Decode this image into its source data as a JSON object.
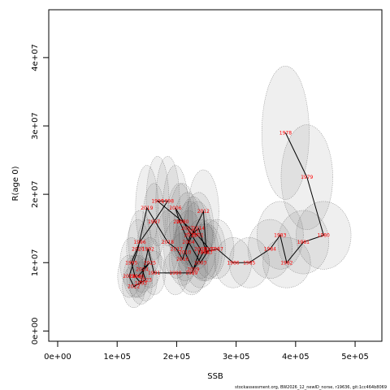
{
  "chart_data": {
    "type": "scatter",
    "xlabel": "SSB",
    "ylabel": "R(age 0)",
    "xlim": [
      -15000,
      545000
    ],
    "ylim": [
      -1500000,
      47000000
    ],
    "x_ticks": [
      0,
      100000,
      200000,
      300000,
      400000,
      500000
    ],
    "x_tick_labels": [
      "0e+00",
      "1e+05",
      "2e+05",
      "3e+05",
      "4e+05",
      "5e+05"
    ],
    "y_ticks": [
      0,
      10000000,
      20000000,
      30000000,
      40000000
    ],
    "y_tick_labels": [
      "0e+00",
      "1e+07",
      "2e+07",
      "3e+07",
      "4e+07"
    ],
    "footer_text": "stockassessment.org, BW2026_12_newID_norse, r19636, git:1cc464b8069",
    "connected_path": true,
    "ellipses_shown": true,
    "points": [
      {
        "label": "1978",
        "x": 383000,
        "y": 29000000
      },
      {
        "label": "1979",
        "x": 419000,
        "y": 22500000
      },
      {
        "label": "1980",
        "x": 447000,
        "y": 14000000
      },
      {
        "label": "1981",
        "x": 413000,
        "y": 13000000
      },
      {
        "label": "1982",
        "x": 385000,
        "y": 10000000
      },
      {
        "label": "1983",
        "x": 374000,
        "y": 14000000
      },
      {
        "label": "1984",
        "x": 357000,
        "y": 12000000
      },
      {
        "label": "1985",
        "x": 322000,
        "y": 10000000
      },
      {
        "label": "1986",
        "x": 295000,
        "y": 10000000
      },
      {
        "label": "1987",
        "x": 268000,
        "y": 12000000
      },
      {
        "label": "1988",
        "x": 245000,
        "y": 11500000
      },
      {
        "label": "1989",
        "x": 225000,
        "y": 8500000
      },
      {
        "label": "1990",
        "x": 198000,
        "y": 8500000
      },
      {
        "label": "1991",
        "x": 162000,
        "y": 8500000
      },
      {
        "label": "1992",
        "x": 152000,
        "y": 12000000
      },
      {
        "label": "1993",
        "x": 140000,
        "y": 7000000
      },
      {
        "label": "1994",
        "x": 130000,
        "y": 8000000
      },
      {
        "label": "1995",
        "x": 124000,
        "y": 10000000
      },
      {
        "label": "1996",
        "x": 138000,
        "y": 13000000
      },
      {
        "label": "1997",
        "x": 162000,
        "y": 16000000
      },
      {
        "label": "1998",
        "x": 185000,
        "y": 19000000
      },
      {
        "label": "1999",
        "x": 168000,
        "y": 19000000
      },
      {
        "label": "2000",
        "x": 210000,
        "y": 16000000
      },
      {
        "label": "2001",
        "x": 235000,
        "y": 14000000
      },
      {
        "label": "2002",
        "x": 255000,
        "y": 12000000
      },
      {
        "label": "2003",
        "x": 240000,
        "y": 10000000
      },
      {
        "label": "2004",
        "x": 220000,
        "y": 13000000
      },
      {
        "label": "2005",
        "x": 205000,
        "y": 16000000
      },
      {
        "label": "2006",
        "x": 198000,
        "y": 18000000
      },
      {
        "label": "2007",
        "x": 218000,
        "y": 15000000
      },
      {
        "label": "2008",
        "x": 240000,
        "y": 12000000
      },
      {
        "label": "2009",
        "x": 228000,
        "y": 9000000
      },
      {
        "label": "2010",
        "x": 214000,
        "y": 11500000
      },
      {
        "label": "2011",
        "x": 228000,
        "y": 14500000
      },
      {
        "label": "2012",
        "x": 245000,
        "y": 17500000
      },
      {
        "label": "2013",
        "x": 250000,
        "y": 11500000
      },
      {
        "label": "2014",
        "x": 237000,
        "y": 15000000
      },
      {
        "label": "2015",
        "x": 223000,
        "y": 14000000
      },
      {
        "label": "2016",
        "x": 210000,
        "y": 10500000
      },
      {
        "label": "2017",
        "x": 200000,
        "y": 12000000
      },
      {
        "label": "2018",
        "x": 185000,
        "y": 13000000
      },
      {
        "label": "2019",
        "x": 150000,
        "y": 18000000
      },
      {
        "label": "2020",
        "x": 135000,
        "y": 12000000
      },
      {
        "label": "2021",
        "x": 120000,
        "y": 8000000
      },
      {
        "label": "2022",
        "x": 128000,
        "y": 6500000
      },
      {
        "label": "2023",
        "x": 148000,
        "y": 7500000
      },
      {
        "label": "2024",
        "x": 142000,
        "y": 9000000
      },
      {
        "label": "2025",
        "x": 155000,
        "y": 10000000
      },
      {
        "label": "2026",
        "x": 135000,
        "y": 8000000
      }
    ]
  }
}
